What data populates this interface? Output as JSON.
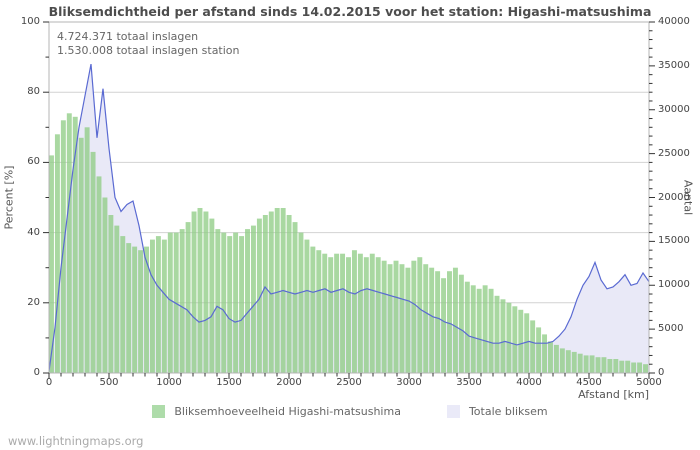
{
  "source_watermark": "www.lightningmaps.org",
  "chart_data": {
    "type": "combo",
    "title": "Bliksemdichtheid per afstand sinds 14.02.2015 voor het station: Higashi-matsushima",
    "annotations": [
      "4.724.371 totaal inslagen",
      "1.530.008 totaal inslagen station"
    ],
    "x_axis": {
      "label": "Afstand  [km]",
      "min": 0,
      "max": 5000,
      "major_ticks": [
        0,
        500,
        1000,
        1500,
        2000,
        2500,
        3000,
        3500,
        4000,
        4500,
        5000
      ],
      "minor_step": 100
    },
    "left_axis": {
      "label": "Percent  [%]",
      "min": 0,
      "max": 100,
      "major_ticks": [
        0,
        20,
        40,
        60,
        80,
        100
      ],
      "minor_step": 10
    },
    "right_axis": {
      "label": "Aantal",
      "min": 0,
      "max": 40000,
      "major_ticks": [
        0,
        5000,
        10000,
        15000,
        20000,
        25000,
        30000,
        35000,
        40000
      ],
      "minor_step": 1000
    },
    "grid": "horizontal",
    "legend_position": "bottom",
    "x": [
      0,
      50,
      100,
      150,
      200,
      250,
      300,
      350,
      400,
      450,
      500,
      550,
      600,
      650,
      700,
      750,
      800,
      850,
      900,
      950,
      1000,
      1050,
      1100,
      1150,
      1200,
      1250,
      1300,
      1350,
      1400,
      1450,
      1500,
      1550,
      1600,
      1650,
      1700,
      1750,
      1800,
      1850,
      1900,
      1950,
      2000,
      2050,
      2100,
      2150,
      2200,
      2250,
      2300,
      2350,
      2400,
      2450,
      2500,
      2550,
      2600,
      2650,
      2700,
      2750,
      2800,
      2850,
      2900,
      2950,
      3000,
      3050,
      3100,
      3150,
      3200,
      3250,
      3300,
      3350,
      3400,
      3450,
      3500,
      3550,
      3600,
      3650,
      3700,
      3750,
      3800,
      3850,
      3900,
      3950,
      4000,
      4050,
      4100,
      4150,
      4200,
      4250,
      4300,
      4350,
      4400,
      4450,
      4500,
      4550,
      4600,
      4650,
      4700,
      4750,
      4800,
      4850,
      4900,
      4950,
      5000
    ],
    "series": [
      {
        "name": "Bliksemhoeveelheid Higashi-matsushima",
        "type": "bar",
        "axis": "left",
        "unit": "percent",
        "color": "#aedcaa",
        "values": [
          62,
          68,
          72,
          74,
          73,
          67,
          70,
          63,
          56,
          50,
          45,
          42,
          39,
          37,
          36,
          35,
          36,
          38,
          39,
          38,
          40,
          40,
          41,
          43,
          46,
          47,
          46,
          44,
          41,
          40,
          39,
          40,
          39,
          41,
          42,
          44,
          45,
          46,
          47,
          47,
          45,
          43,
          40,
          38,
          36,
          35,
          34,
          33,
          34,
          34,
          33,
          35,
          34,
          33,
          34,
          33,
          32,
          31,
          32,
          31,
          30,
          32,
          33,
          31,
          30,
          29,
          27,
          29,
          30,
          28,
          26,
          25,
          24,
          25,
          24,
          22,
          21,
          20,
          19,
          18,
          17,
          15,
          13,
          11,
          9,
          8,
          7,
          6.5,
          6,
          5.5,
          5,
          5,
          4.5,
          4.5,
          4,
          4,
          3.5,
          3.5,
          3,
          3,
          2.5
        ]
      },
      {
        "name": "Totale bliksem",
        "type": "area-line",
        "axis": "right",
        "unit": "aantal",
        "fill_color": "#e9e9f7",
        "line_color": "#5a6ad2",
        "values": [
          200,
          5200,
          12000,
          17600,
          23200,
          28000,
          31600,
          35200,
          26800,
          32400,
          25600,
          20000,
          18400,
          19200,
          19600,
          16800,
          13200,
          11200,
          10000,
          9200,
          8400,
          8000,
          7600,
          7200,
          6400,
          5800,
          6000,
          6400,
          7600,
          7200,
          6200,
          5800,
          6000,
          6800,
          7600,
          8400,
          9800,
          9000,
          9200,
          9400,
          9200,
          9000,
          9200,
          9400,
          9200,
          9400,
          9600,
          9200,
          9400,
          9600,
          9200,
          9000,
          9400,
          9600,
          9400,
          9200,
          9000,
          8800,
          8600,
          8400,
          8200,
          7800,
          7200,
          6800,
          6400,
          6200,
          5800,
          5600,
          5200,
          4800,
          4200,
          4000,
          3800,
          3600,
          3400,
          3400,
          3600,
          3400,
          3200,
          3400,
          3600,
          3400,
          3400,
          3400,
          3600,
          4200,
          5000,
          6400,
          8400,
          10000,
          11000,
          12600,
          10600,
          9600,
          9800,
          10400,
          11200,
          10000,
          10200,
          11400,
          10400
        ]
      }
    ],
    "legend": {
      "items": [
        {
          "label": "Bliksemhoeveelheid Higashi-matsushima",
          "swatch": "#aedcaa"
        },
        {
          "label": "Totale bliksem",
          "swatch": "#eaeaf8"
        }
      ]
    }
  }
}
